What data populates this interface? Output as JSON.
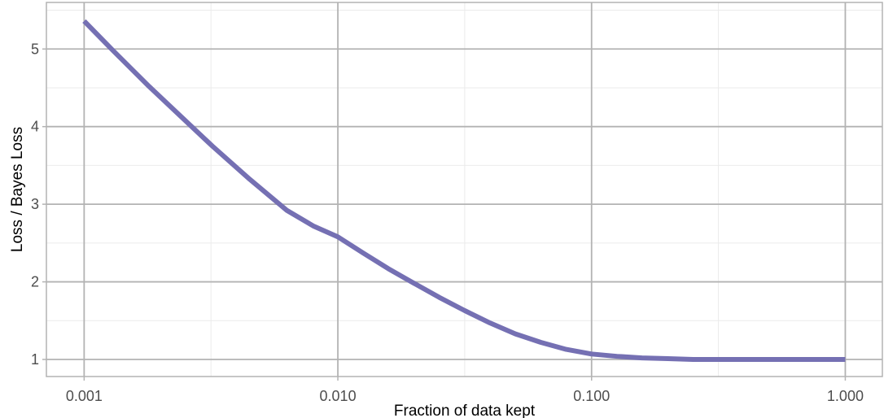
{
  "chart_data": {
    "type": "line",
    "title": "",
    "xlabel": "Fraction of data kept",
    "ylabel": "Loss / Bayes Loss",
    "x_scale": "log10",
    "xlim": [
      0.00071,
      1.4
    ],
    "ylim": [
      0.78,
      5.6
    ],
    "x_ticks": [
      0.001,
      0.01,
      0.1,
      1.0
    ],
    "x_tick_labels": [
      "0.001",
      "0.010",
      "0.100",
      "1.000"
    ],
    "y_ticks": [
      1,
      2,
      3,
      4,
      5
    ],
    "y_tick_labels": [
      "1",
      "2",
      "3",
      "4",
      "5"
    ],
    "grid": true,
    "legend": "none",
    "colors": {
      "line": "#7570b3",
      "grid_major": "#b3b3b3",
      "grid_minor": "#ebebeb",
      "panel_border": "#b3b3b3"
    },
    "series": [
      {
        "x": [
          0.001,
          0.0013,
          0.0018,
          0.0025,
          0.0032,
          0.0045,
          0.0063,
          0.008,
          0.01,
          0.0126,
          0.0158,
          0.02,
          0.0251,
          0.0316,
          0.0398,
          0.05,
          0.0631,
          0.0794,
          0.1,
          0.126,
          0.158,
          0.2,
          0.251,
          0.316,
          0.398,
          0.5,
          0.631,
          0.794,
          1.0
        ],
        "y": [
          5.36,
          4.98,
          4.52,
          4.08,
          3.75,
          3.32,
          2.92,
          2.72,
          2.58,
          2.37,
          2.17,
          1.98,
          1.8,
          1.63,
          1.47,
          1.33,
          1.22,
          1.13,
          1.07,
          1.04,
          1.02,
          1.01,
          1.0,
          1.0,
          1.0,
          1.0,
          1.0,
          1.0,
          1.0
        ]
      }
    ]
  }
}
